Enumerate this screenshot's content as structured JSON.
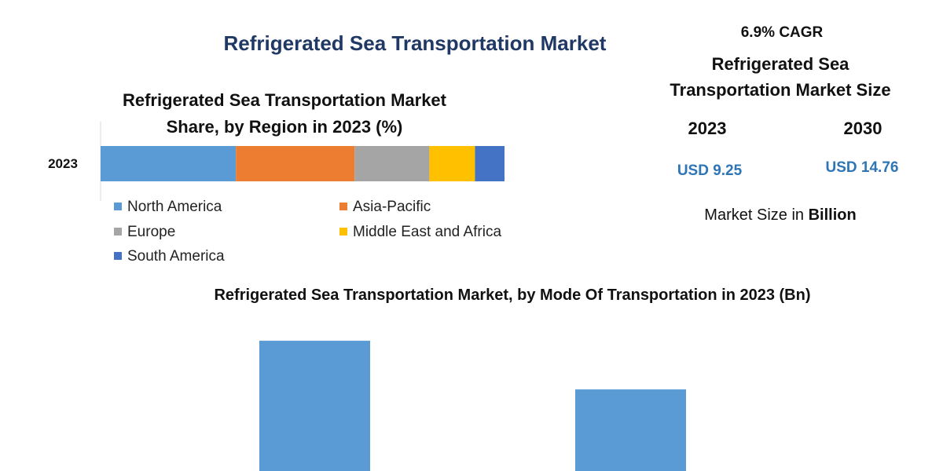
{
  "title": "Refrigerated Sea Transportation Market",
  "cagr": "6.9% CAGR",
  "size_title": "Refrigerated Sea Transportation Market Size",
  "years": [
    "2023",
    "2030"
  ],
  "sizes": [
    "USD 9.25",
    "USD 14.76"
  ],
  "size_note": "Market Size in",
  "size_unit": "Billion",
  "chart_data": [
    {
      "type": "stacked_bar",
      "title": "Refrigerated Sea Transportation Market Share, by Region in 2023 (%)",
      "categories": [
        "2023"
      ],
      "series": [
        {
          "name": "North America",
          "color": "#5b9bd5",
          "values": [
            33.5
          ]
        },
        {
          "name": "Asia-Pacific",
          "color": "#ed7d31",
          "values": [
            29.4
          ]
        },
        {
          "name": "Europe",
          "color": "#a5a5a5",
          "values": [
            18.5
          ]
        },
        {
          "name": "Middle East and Africa",
          "color": "#ffc000",
          "values": [
            11.3
          ]
        },
        {
          "name": "South America",
          "color": "#4472c4",
          "values": [
            7.3
          ]
        }
      ]
    },
    {
      "type": "bar",
      "title": "Refrigerated Sea Transportation Market, by Mode Of Transportation in 2023 (Bn)",
      "categories": [
        null,
        null
      ],
      "values": [
        5.55,
        3.7
      ],
      "color": "#5b9bd5"
    }
  ]
}
